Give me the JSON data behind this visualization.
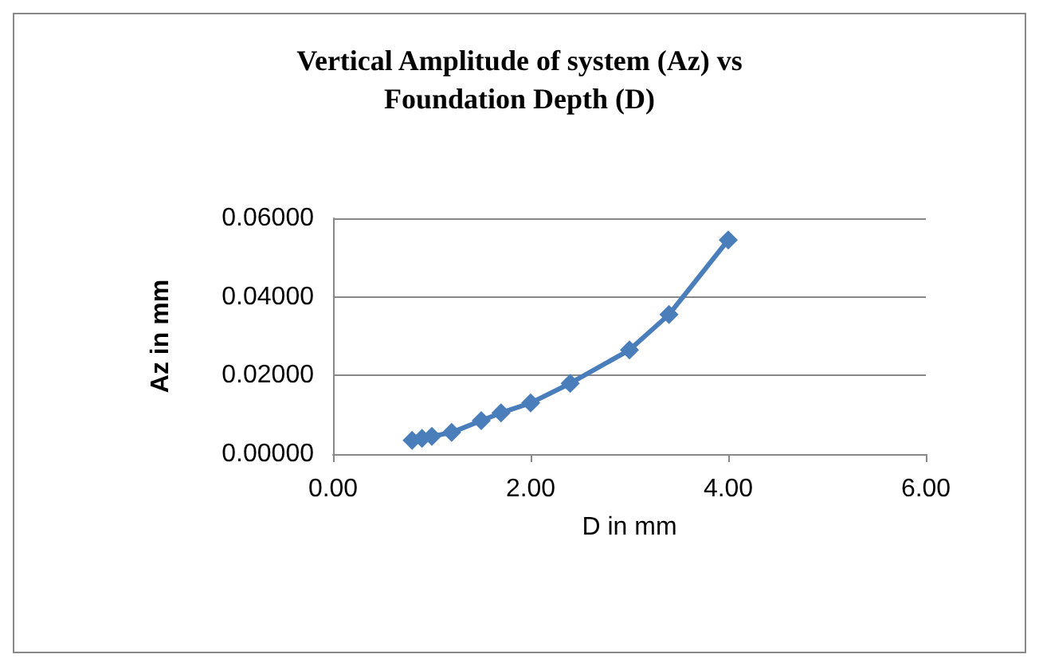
{
  "chart_data": {
    "type": "line",
    "title": "Vertical Amplitude of system (Az) vs\nFoundation Depth (D)",
    "xlabel": "D in mm",
    "ylabel": "Az in mm",
    "x": [
      0.8,
      0.9,
      1.0,
      1.2,
      1.5,
      1.7,
      2.0,
      2.4,
      3.0,
      3.4,
      4.0
    ],
    "series": [
      {
        "color": "#4a7ebb",
        "values": [
          0.0035,
          0.004,
          0.0045,
          0.0055,
          0.0085,
          0.0105,
          0.013,
          0.018,
          0.0265,
          0.0355,
          0.0545
        ]
      }
    ],
    "xlim": [
      0,
      6
    ],
    "xticks": [
      {
        "value": 0,
        "label": "0.00"
      },
      {
        "value": 2,
        "label": "2.00"
      },
      {
        "value": 4,
        "label": "4.00"
      },
      {
        "value": 6,
        "label": "6.00"
      }
    ],
    "ylim": [
      0,
      0.06
    ],
    "yticks": [
      {
        "value": 0,
        "label": "0.00000"
      },
      {
        "value": 0.02,
        "label": "0.02000"
      },
      {
        "value": 0.04,
        "label": "0.04000"
      },
      {
        "value": 0.06,
        "label": "0.06000"
      }
    ],
    "grid": "y",
    "marker": "diamond",
    "line_style": "solid"
  }
}
